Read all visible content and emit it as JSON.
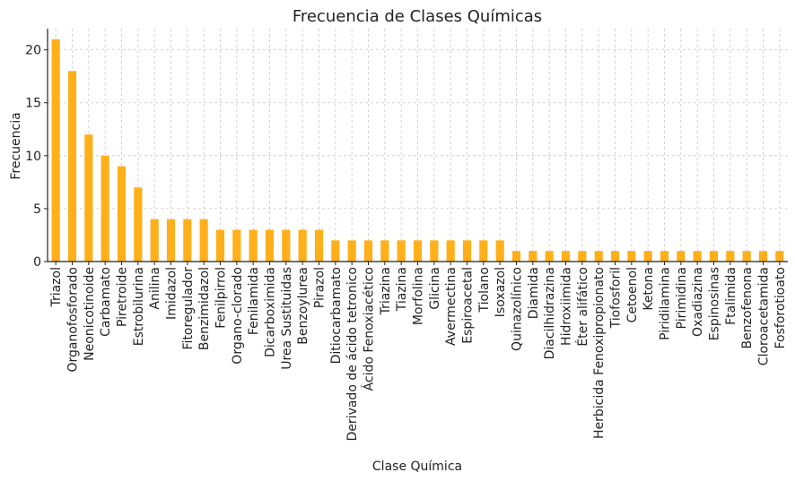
{
  "chart_data": {
    "type": "bar",
    "title": "Frecuencia de Clases Químicas",
    "xlabel": "Clase Química",
    "ylabel": "Frecuencia",
    "ylim": [
      0,
      22
    ],
    "yticks": [
      0,
      5,
      10,
      15,
      20
    ],
    "grid": true,
    "bar_color": "#FFAF19",
    "categories": [
      "Triazol",
      "Organofosforado",
      "Neonicotinoide",
      "Carbamato",
      "Piretroide",
      "Estrobilurina",
      "Anilina",
      "Imidazol",
      "Fitoregulador",
      "Benzimidazol",
      "Fenilpirrol",
      "Organo-clorado",
      "Fenilamida",
      "Dicarboximida",
      "Urea Sustituidas",
      "Benzoylurea",
      "Pirazol",
      "Ditiocarbamato",
      "Derivado de ácido tetronico",
      "Ácido Fenoxiacético",
      "Triazina",
      "Tiazina",
      "Morfolina",
      "Glicina",
      "Avermectina",
      "Espiroacetal",
      "Tiolano",
      "Isoxazol",
      "Quinazolínico",
      "Diamida",
      "Diacilhidrazina",
      "Hidroxiimida",
      "Éter alifático",
      "Herbicida Fenoxipropionato",
      "Tiofosforil",
      "Cetoenol",
      "Ketona",
      "Piridilamina",
      "Pirimidina",
      "Oxadiazina",
      "Espinosinas",
      "Ftalimida",
      "Benzofenona",
      "Cloroacetamida",
      "Fosforotioato"
    ],
    "values": [
      21,
      18,
      12,
      10,
      9,
      7,
      4,
      4,
      4,
      4,
      3,
      3,
      3,
      3,
      3,
      3,
      3,
      2,
      2,
      2,
      2,
      2,
      2,
      2,
      2,
      2,
      2,
      2,
      1,
      1,
      1,
      1,
      1,
      1,
      1,
      1,
      1,
      1,
      1,
      1,
      1,
      1,
      1,
      1,
      1
    ]
  }
}
